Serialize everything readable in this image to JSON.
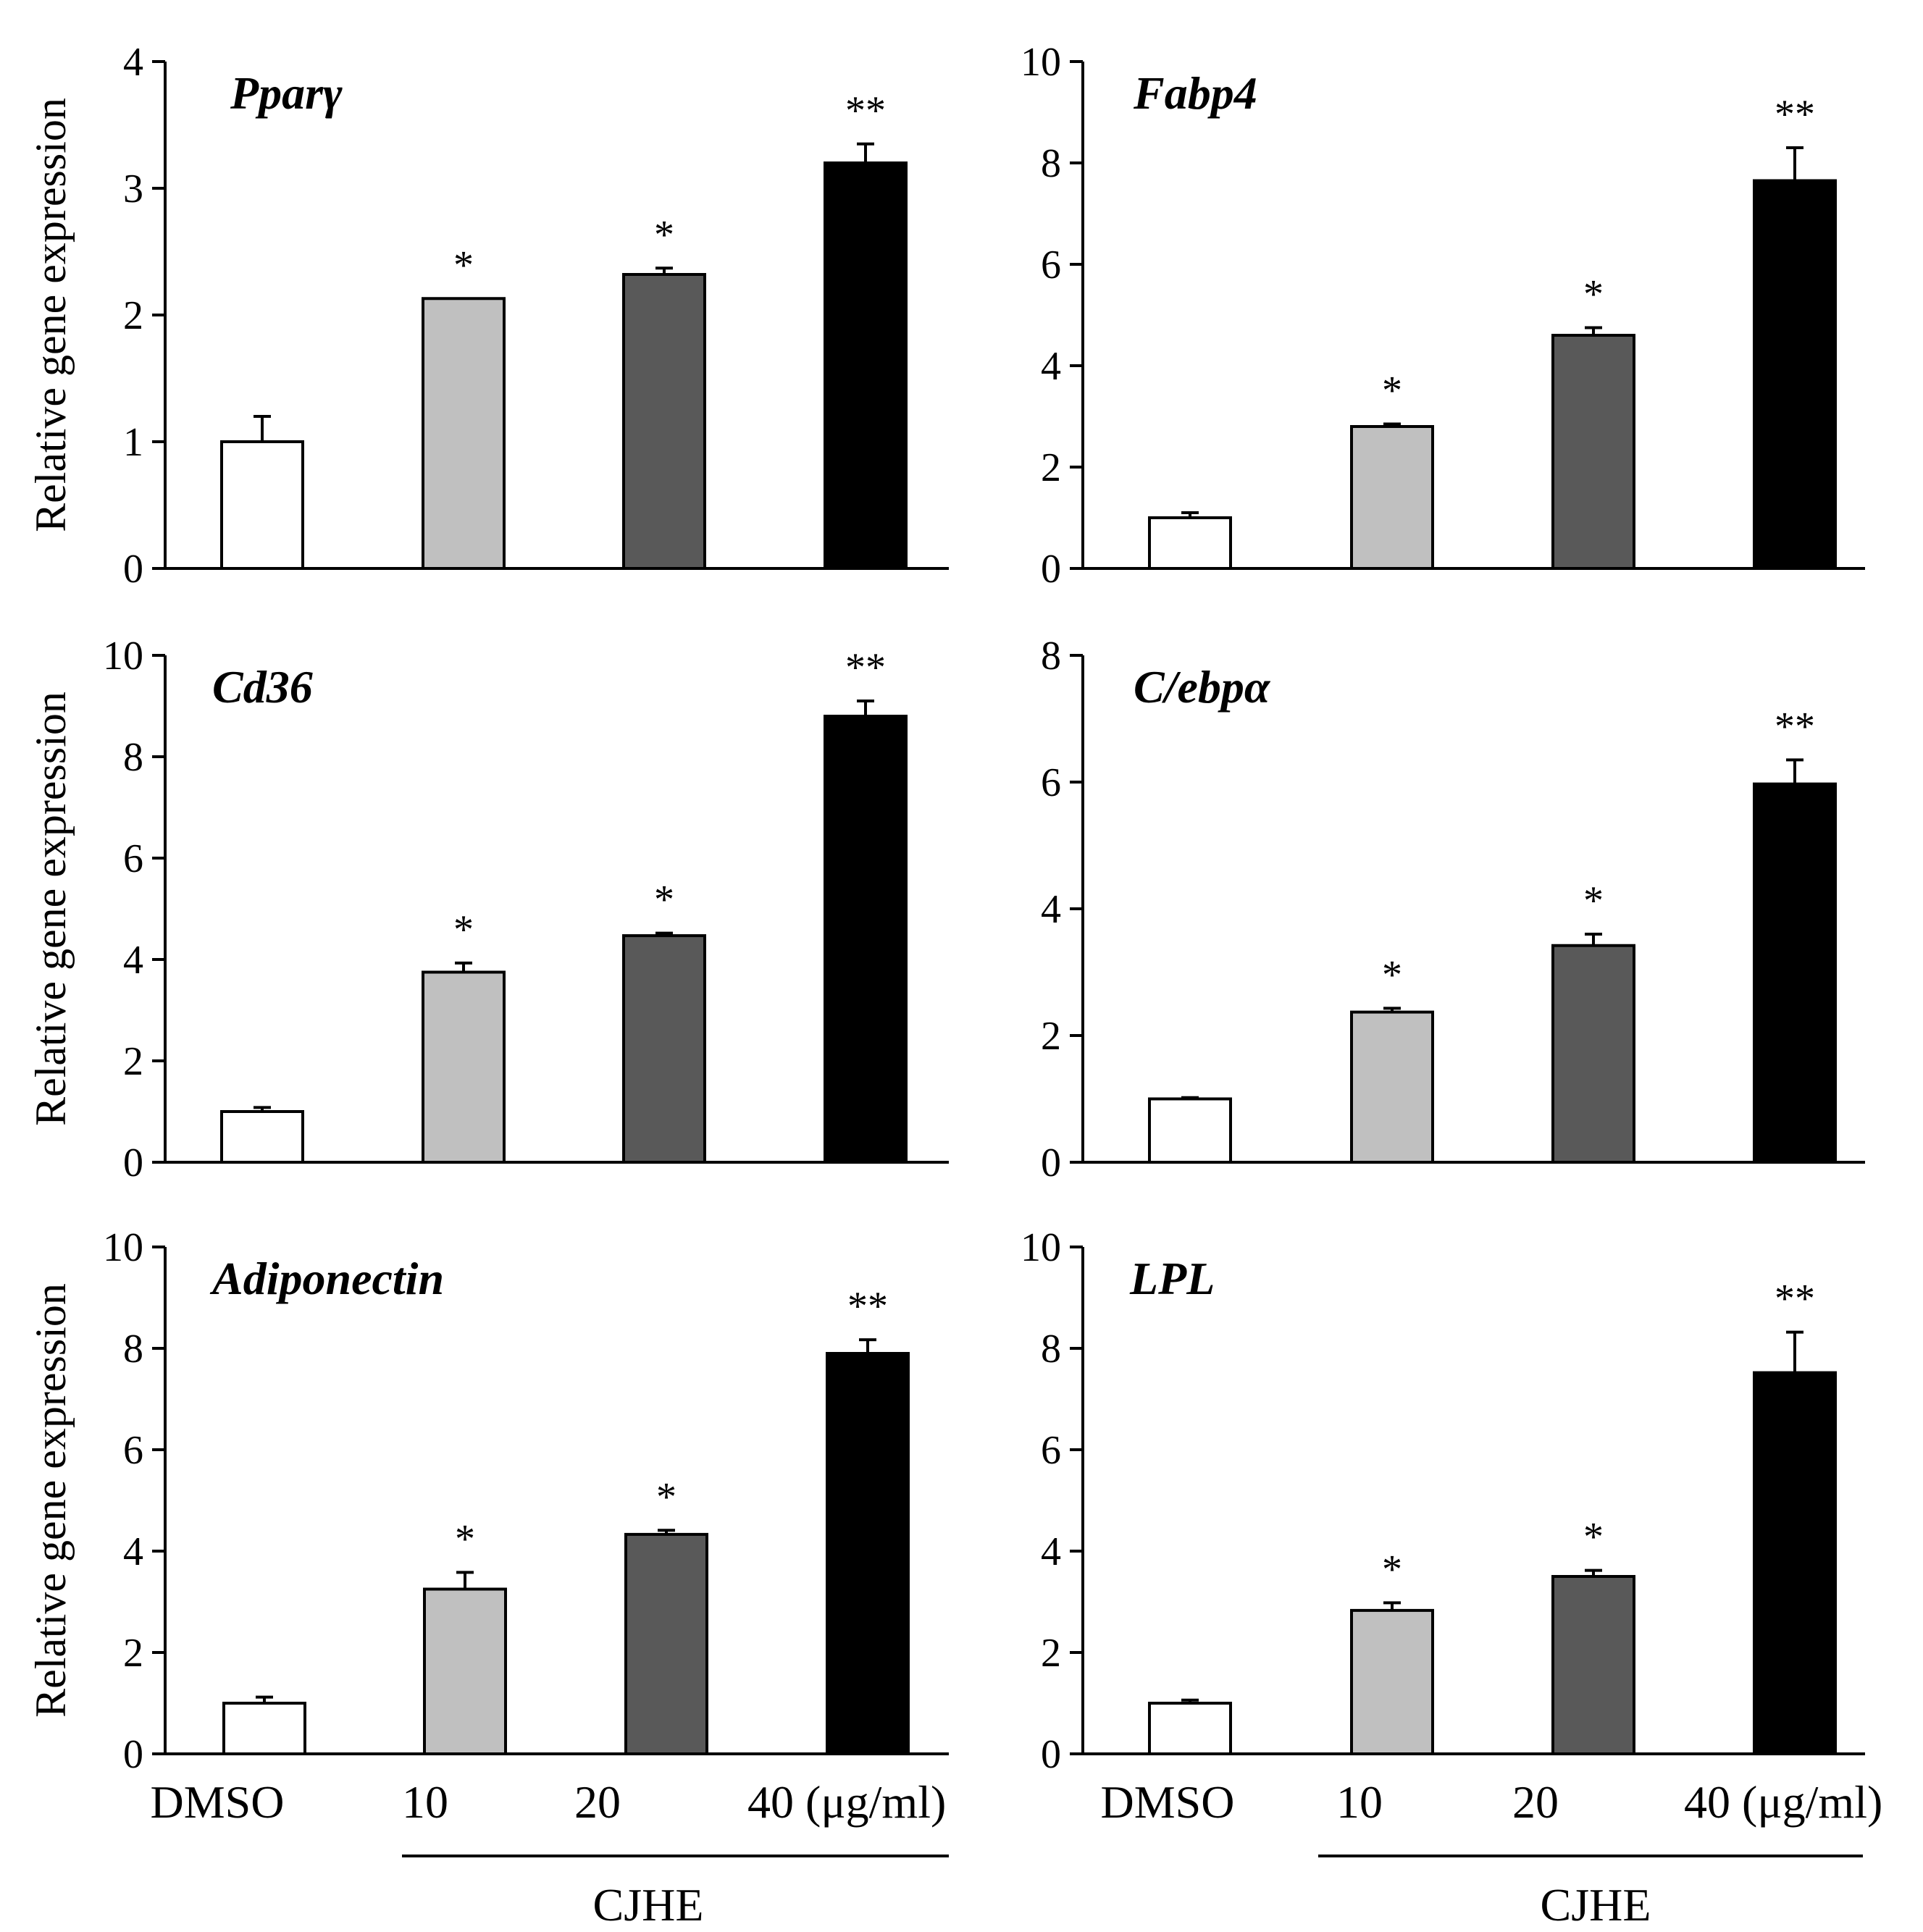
{
  "figure": {
    "x_labels": [
      "DMSO",
      "10",
      "20",
      "40 (μg/ml)"
    ],
    "group_label": "CJHE",
    "colors": {
      "dmso": "#ffffff",
      "c10": "#c0c0c0",
      "c20": "#595959",
      "c40": "#000000"
    }
  },
  "chart_data": [
    {
      "type": "bar",
      "title": "Pparγ",
      "categories": [
        "DMSO",
        "10",
        "20",
        "40"
      ],
      "values": [
        1.0,
        2.13,
        2.32,
        3.2
      ],
      "errors": [
        0.2,
        0.0,
        0.05,
        0.15
      ],
      "significance": [
        "",
        "*",
        "*",
        "**"
      ],
      "ylabel": "Relative gene expression",
      "ylim": [
        0,
        4
      ],
      "yticks": [
        "0",
        "1",
        "2",
        "3",
        "4"
      ]
    },
    {
      "type": "bar",
      "title": "Fabp4",
      "categories": [
        "DMSO",
        "10",
        "20",
        "40"
      ],
      "values": [
        1.0,
        2.8,
        4.6,
        7.65
      ],
      "errors": [
        0.1,
        0.05,
        0.15,
        0.65
      ],
      "significance": [
        "",
        "*",
        "*",
        "**"
      ],
      "ylabel": "",
      "ylim": [
        0,
        10
      ],
      "yticks": [
        "0",
        "2",
        "4",
        "6",
        "8",
        "10"
      ]
    },
    {
      "type": "bar",
      "title": "Cd36",
      "categories": [
        "DMSO",
        "10",
        "20",
        "40"
      ],
      "values": [
        1.0,
        3.75,
        4.47,
        8.8
      ],
      "errors": [
        0.08,
        0.18,
        0.05,
        0.3
      ],
      "significance": [
        "",
        "*",
        "*",
        "**"
      ],
      "ylabel": "Relative gene expression",
      "ylim": [
        0,
        10
      ],
      "yticks": [
        "0",
        "2",
        "4",
        "6",
        "8",
        "10"
      ]
    },
    {
      "type": "bar",
      "title": "C/ebpα",
      "categories": [
        "DMSO",
        "10",
        "20",
        "40"
      ],
      "values": [
        1.0,
        2.37,
        3.42,
        5.97
      ],
      "errors": [
        0.02,
        0.06,
        0.18,
        0.38
      ],
      "significance": [
        "",
        "*",
        "*",
        "**"
      ],
      "ylabel": "",
      "ylim": [
        0,
        8
      ],
      "yticks": [
        "0",
        "2",
        "4",
        "6",
        "8"
      ]
    },
    {
      "type": "bar",
      "title": "Adiponectin",
      "categories": [
        "DMSO",
        "10",
        "20",
        "40"
      ],
      "values": [
        1.0,
        3.25,
        4.33,
        7.9
      ],
      "errors": [
        0.12,
        0.33,
        0.08,
        0.27
      ],
      "significance": [
        "",
        "*",
        "*",
        "**"
      ],
      "ylabel": "Relative gene expression",
      "ylim": [
        0,
        10
      ],
      "yticks": [
        "0",
        "2",
        "4",
        "6",
        "8",
        "10"
      ]
    },
    {
      "type": "bar",
      "title": "LPL",
      "categories": [
        "DMSO",
        "10",
        "20",
        "40"
      ],
      "values": [
        1.0,
        2.83,
        3.5,
        7.52
      ],
      "errors": [
        0.06,
        0.15,
        0.12,
        0.8
      ],
      "significance": [
        "",
        "*",
        "*",
        "**"
      ],
      "ylabel": "",
      "ylim": [
        0,
        10
      ],
      "yticks": [
        "0",
        "2",
        "4",
        "6",
        "8",
        "10"
      ]
    }
  ]
}
